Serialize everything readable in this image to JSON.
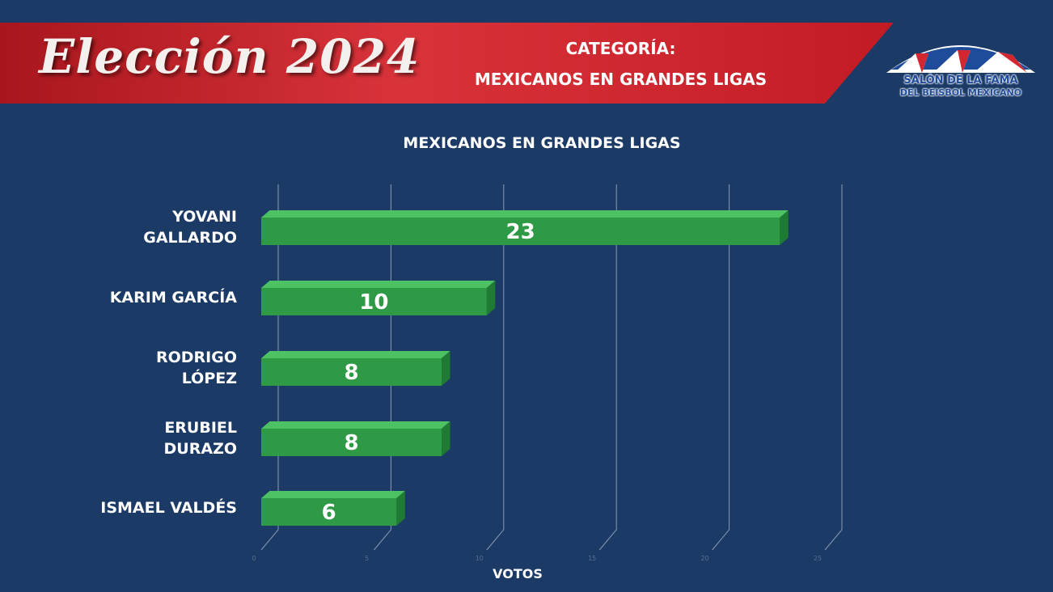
{
  "header": {
    "title": "Elección 2024",
    "category_label": "CATEGORÍA:",
    "category_name": "MEXICANOS EN GRANDES LIGAS"
  },
  "logo": {
    "line1": "SALÓN DE LA FAMA",
    "line2": "DEL BEISBOL MEXICANO"
  },
  "colors": {
    "bar": "#2f9a45",
    "bar_top": "#4cc262",
    "bar_side": "#1f7a33",
    "banner": "#c21b24",
    "background": "#1b3a66"
  },
  "chart_data": {
    "type": "bar",
    "orientation": "horizontal",
    "title": "MEXICANOS EN GRANDES LIGAS",
    "xlabel": "VOTOS",
    "ylabel": "",
    "categories": [
      [
        "YOVANI",
        "GALLARDO"
      ],
      [
        "KARIM GARCÍA"
      ],
      [
        "RODRIGO",
        "LÓPEZ"
      ],
      [
        "ERUBIEL",
        "DURAZO"
      ],
      [
        "ISMAEL VALDÉS"
      ]
    ],
    "values": [
      23,
      10,
      8,
      8,
      6
    ],
    "xlim": [
      0,
      25
    ],
    "xticks": [
      "0",
      "5",
      "10",
      "15",
      "20",
      "25"
    ],
    "grid": true
  }
}
